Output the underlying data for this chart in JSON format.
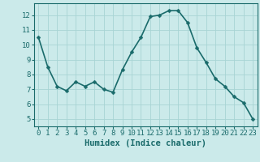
{
  "x": [
    0,
    1,
    2,
    3,
    4,
    5,
    6,
    7,
    8,
    9,
    10,
    11,
    12,
    13,
    14,
    15,
    16,
    17,
    18,
    19,
    20,
    21,
    22,
    23
  ],
  "y": [
    10.5,
    8.5,
    7.2,
    6.9,
    7.5,
    7.2,
    7.5,
    7.0,
    6.8,
    8.3,
    9.5,
    10.5,
    11.9,
    12.0,
    12.3,
    12.3,
    11.5,
    9.8,
    8.8,
    7.7,
    7.2,
    6.5,
    6.1,
    5.0
  ],
  "line_color": "#1a6b6b",
  "marker": "D",
  "marker_size": 2.5,
  "bg_color": "#cbeaea",
  "grid_color": "#a8d4d4",
  "xlabel": "Humidex (Indice chaleur)",
  "ylim": [
    4.5,
    12.8
  ],
  "xlim": [
    -0.5,
    23.5
  ],
  "yticks": [
    5,
    6,
    7,
    8,
    9,
    10,
    11,
    12
  ],
  "xticks": [
    0,
    1,
    2,
    3,
    4,
    5,
    6,
    7,
    8,
    9,
    10,
    11,
    12,
    13,
    14,
    15,
    16,
    17,
    18,
    19,
    20,
    21,
    22,
    23
  ],
  "xlabel_fontsize": 7.5,
  "tick_fontsize": 6.5,
  "line_width": 1.2
}
